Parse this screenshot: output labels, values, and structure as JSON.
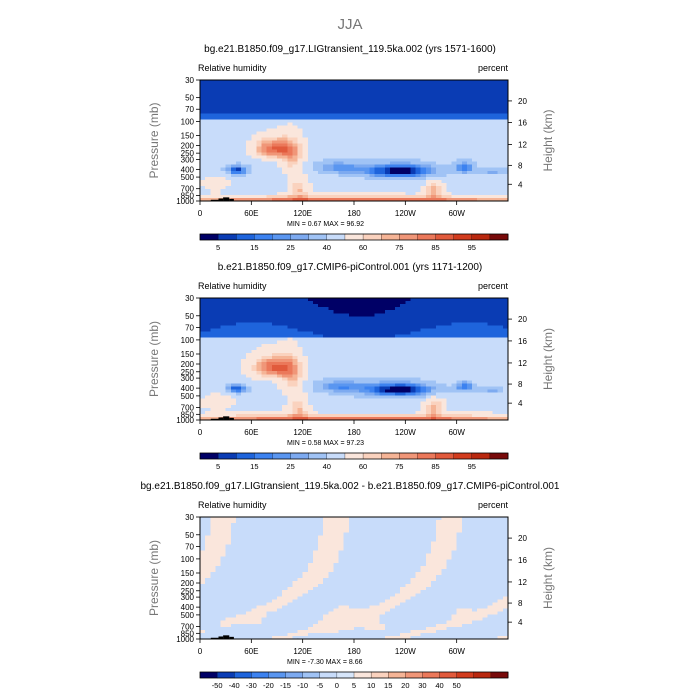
{
  "figure_title": "JJA",
  "colors": {
    "seq": [
      "#000066",
      "#0a3cb4",
      "#1e64dc",
      "#3c82f0",
      "#5a96f0",
      "#7daaf0",
      "#a0c3f5",
      "#c8dcfa",
      "#fae6dc",
      "#fad2be",
      "#f5b496",
      "#f09678",
      "#eb785a",
      "#e15a3c",
      "#d23c1e",
      "#b9280f",
      "#780a0a"
    ],
    "diff": [
      "#000066",
      "#0a3cb4",
      "#1e64dc",
      "#3c82f0",
      "#5a96f0",
      "#7daaf0",
      "#a0c3f5",
      "#c8dcfa",
      "#d7e6fa",
      "#fae6dc",
      "#fad2be",
      "#f5b496",
      "#f09678",
      "#eb785a",
      "#e15a3c",
      "#d23c1e",
      "#b9280f",
      "#780a0a"
    ],
    "land": "#000000"
  },
  "chart_data": [
    {
      "type": "heatmap",
      "title": "bg.e21.B1850.f09_g17.LIGtransient_119.5ka.002 (yrs 1571-1600)",
      "left_label": "Relative humidity",
      "right_label": "percent",
      "ylabel": "Pressure (mb)",
      "y2label": "Height (km)",
      "xlim": [
        0,
        360
      ],
      "xticks": [
        "0",
        "60E",
        "120E",
        "180",
        "120W",
        "60W"
      ],
      "yticks": [
        "1000",
        "850",
        "700",
        "500",
        "400",
        "300",
        "250",
        "200",
        "150",
        "100",
        "70",
        "50",
        "30"
      ],
      "yticks_right": [
        "20",
        "16",
        "12",
        "8",
        "4"
      ],
      "stats_text": "MIN =     0.67   MAX =    96.92",
      "min": 0.67,
      "max": 96.92,
      "colorbar_labels": [
        "5",
        "15",
        "25",
        "40",
        "60",
        "75",
        "85",
        "95"
      ],
      "scheme": "seq"
    },
    {
      "type": "heatmap",
      "title": "b.e21.B1850.f09_g17.CMIP6-piControl.001 (yrs 1171-1200)",
      "left_label": "Relative humidity",
      "right_label": "percent",
      "ylabel": "Pressure (mb)",
      "y2label": "Height (km)",
      "xlim": [
        0,
        360
      ],
      "xticks": [
        "0",
        "60E",
        "120E",
        "180",
        "120W",
        "60W"
      ],
      "yticks": [
        "1000",
        "850",
        "700",
        "500",
        "400",
        "300",
        "250",
        "200",
        "150",
        "100",
        "70",
        "50",
        "30"
      ],
      "yticks_right": [
        "20",
        "16",
        "12",
        "8",
        "4"
      ],
      "stats_text": "MIN =     0.58   MAX =    97.23",
      "min": 0.58,
      "max": 97.23,
      "colorbar_labels": [
        "5",
        "15",
        "25",
        "40",
        "60",
        "75",
        "85",
        "95"
      ],
      "scheme": "seq"
    },
    {
      "type": "heatmap",
      "title": "bg.e21.B1850.f09_g17.LIGtransient_119.5ka.002 - b.e21.B1850.f09_g17.CMIP6-piControl.001",
      "left_label": "Relative humidity",
      "right_label": "percent",
      "ylabel": "Pressure (mb)",
      "y2label": "Height (km)",
      "xlim": [
        0,
        360
      ],
      "xticks": [
        "0",
        "60E",
        "120E",
        "180",
        "120W",
        "60W"
      ],
      "yticks": [
        "1000",
        "850",
        "700",
        "500",
        "400",
        "300",
        "250",
        "200",
        "150",
        "100",
        "70",
        "50",
        "30"
      ],
      "yticks_right": [
        "20",
        "16",
        "12",
        "8",
        "4"
      ],
      "stats_text": "MIN =    -7.30   MAX =     8.66",
      "min": -7.3,
      "max": 8.66,
      "colorbar_labels": [
        "-50",
        "-40",
        "-30",
        "-20",
        "-15",
        "-10",
        "-5",
        "0",
        "5",
        "10",
        "15",
        "20",
        "30",
        "40",
        "50"
      ],
      "scheme": "diff"
    }
  ]
}
